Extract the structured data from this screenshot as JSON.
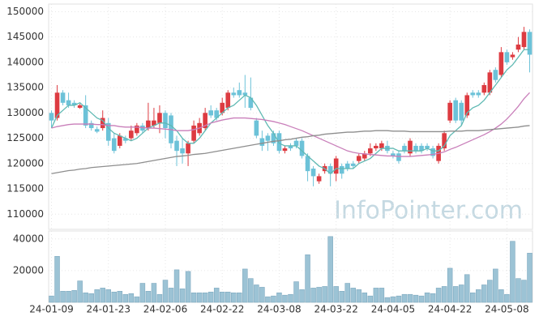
{
  "chart_data": [
    {
      "type": "candlestick",
      "categories": [
        "24-01-09",
        null,
        null,
        null,
        null,
        null,
        null,
        null,
        null,
        null,
        "24-01-23",
        null,
        null,
        null,
        null,
        null,
        null,
        null,
        null,
        null,
        "24-02-06",
        null,
        null,
        null,
        null,
        null,
        null,
        null,
        null,
        null,
        "24-02-22",
        null,
        null,
        null,
        null,
        null,
        null,
        null,
        null,
        null,
        "24-03-08",
        null,
        null,
        null,
        null,
        null,
        null,
        null,
        null,
        null,
        "24-03-22",
        null,
        null,
        null,
        null,
        null,
        null,
        null,
        null,
        null,
        "24-04-05",
        null,
        null,
        null,
        null,
        null,
        null,
        null,
        null,
        null,
        "24-04-22",
        null,
        null,
        null,
        null,
        null,
        null,
        null,
        null,
        null,
        "24-05-08",
        null,
        null,
        null,
        null
      ],
      "open": [
        130000,
        129000,
        134000,
        132500,
        132000,
        131000,
        131500,
        128000,
        126800,
        127000,
        128000,
        125000,
        123500,
        125000,
        125000,
        126000,
        127500,
        127000,
        127500,
        128000,
        130000,
        129500,
        124500,
        123000,
        122000,
        124500,
        126000,
        127000,
        130500,
        130500,
        130000,
        131000,
        134000,
        134500,
        134000,
        133000,
        128500,
        125000,
        125500,
        126000,
        126000,
        122500,
        123500,
        124500,
        124500,
        121500,
        119000,
        116500,
        118500,
        119500,
        118000,
        119500,
        120000,
        120000,
        120500,
        121000,
        122000,
        123000,
        123000,
        123500,
        122000,
        122000,
        123500,
        122000,
        123500,
        123500,
        123500,
        123000,
        120500,
        123000,
        128500,
        132500,
        132000,
        129500,
        134000,
        134000,
        134000,
        134000,
        138500,
        137500,
        142000,
        141000,
        142500,
        143000,
        146000
      ],
      "high": [
        130500,
        135500,
        134500,
        134000,
        132500,
        131800,
        133500,
        128500,
        127300,
        130500,
        129000,
        126000,
        126000,
        125500,
        127500,
        128000,
        128000,
        132000,
        131000,
        131500,
        130500,
        130000,
        125500,
        125000,
        124500,
        128500,
        129000,
        131000,
        131500,
        131000,
        133000,
        134500,
        135000,
        136000,
        137500,
        137000,
        129000,
        126500,
        126000,
        126500,
        126500,
        123500,
        124000,
        125000,
        125000,
        122000,
        119500,
        118000,
        120000,
        120000,
        121500,
        120000,
        120500,
        120500,
        122000,
        122500,
        124000,
        124000,
        124500,
        124500,
        122500,
        122500,
        124000,
        125000,
        124000,
        124000,
        124000,
        123500,
        124000,
        126500,
        132500,
        133000,
        132500,
        134000,
        134500,
        134500,
        136000,
        138500,
        139000,
        143000,
        142500,
        142000,
        145000,
        147000,
        146500
      ],
      "low": [
        127000,
        128500,
        131500,
        131000,
        131000,
        130800,
        127000,
        126500,
        126000,
        126500,
        123500,
        122000,
        123000,
        124000,
        124500,
        125500,
        126000,
        126500,
        127000,
        126000,
        125000,
        123000,
        119500,
        120000,
        119500,
        124000,
        125500,
        126500,
        129000,
        128500,
        129500,
        130500,
        133000,
        133000,
        131000,
        130500,
        125000,
        122500,
        122500,
        123500,
        122000,
        122000,
        122500,
        123000,
        121000,
        116500,
        115500,
        116000,
        118000,
        115500,
        116500,
        117000,
        118500,
        119000,
        120000,
        120500,
        121500,
        122500,
        122500,
        122000,
        121000,
        120000,
        122000,
        121500,
        122000,
        122000,
        122500,
        121000,
        120000,
        122500,
        128000,
        128000,
        127500,
        129000,
        133000,
        133000,
        133500,
        133500,
        136000,
        137000,
        139500,
        140500,
        142000,
        142500,
        138000
      ],
      "close": [
        128500,
        134000,
        132000,
        131500,
        131500,
        131500,
        127500,
        127000,
        126300,
        129000,
        124500,
        122500,
        125500,
        124500,
        126500,
        127500,
        126500,
        128500,
        128500,
        130000,
        127000,
        124000,
        122500,
        122000,
        124000,
        127500,
        128000,
        130000,
        129500,
        129000,
        132000,
        134000,
        133500,
        133500,
        133500,
        131000,
        125500,
        123500,
        124500,
        124000,
        122500,
        123000,
        123000,
        123500,
        121500,
        118500,
        117500,
        117500,
        119500,
        118000,
        121000,
        118000,
        119000,
        119500,
        121500,
        122000,
        123000,
        123500,
        124000,
        122500,
        121500,
        120500,
        122500,
        124500,
        122500,
        122500,
        123000,
        121500,
        123500,
        126000,
        132000,
        128500,
        128500,
        133500,
        133500,
        133500,
        135500,
        138000,
        136500,
        142000,
        140000,
        141500,
        143500,
        146000,
        141500
      ],
      "up_color": "#dd3b41",
      "down_color": "#6cc2d8",
      "series": [
        {
          "color": "#5fb9b3",
          "values": [
            127000,
            129500,
            130500,
            131500,
            131500,
            132000,
            131000,
            130000,
            129000,
            128500,
            127000,
            126000,
            125500,
            125000,
            124500,
            125000,
            126000,
            127000,
            127500,
            128000,
            128000,
            127500,
            126500,
            125000,
            124000,
            124000,
            125000,
            126500,
            128000,
            129000,
            130000,
            131000,
            131500,
            132500,
            133500,
            133000,
            131500,
            129500,
            127500,
            126000,
            124000,
            123500,
            123500,
            123500,
            122500,
            121500,
            120500,
            119500,
            119000,
            118000,
            119000,
            119000,
            119000,
            119000,
            120000,
            120500,
            121000,
            122000,
            123000,
            123000,
            123000,
            122500,
            122500,
            122500,
            122500,
            122500,
            123000,
            122500,
            122500,
            123500,
            125500,
            126500,
            127500,
            130000,
            131000,
            131500,
            132500,
            134000,
            135500,
            137000,
            138500,
            139500,
            141000,
            142500,
            142500
          ]
        },
        {
          "color": "#c97fba",
          "values": [
            127000,
            127300,
            127500,
            127700,
            127800,
            127800,
            127800,
            127800,
            127700,
            127700,
            127500,
            127500,
            127300,
            127200,
            127200,
            127200,
            127100,
            127000,
            127000,
            126900,
            126800,
            126700,
            126500,
            126500,
            126500,
            126700,
            127000,
            127500,
            128000,
            128300,
            128600,
            128800,
            129000,
            129000,
            129000,
            128900,
            128800,
            128700,
            128500,
            128300,
            128000,
            127700,
            127300,
            126900,
            126500,
            126000,
            125500,
            125000,
            124500,
            124000,
            123500,
            123000,
            122500,
            122200,
            122000,
            121900,
            121800,
            121700,
            121600,
            121500,
            121500,
            121400,
            121400,
            121400,
            121500,
            121600,
            121700,
            121800,
            122000,
            122300,
            122800,
            123200,
            123700,
            124200,
            124700,
            125200,
            125700,
            126300,
            127000,
            127800,
            128800,
            130000,
            131300,
            132800,
            134000
          ]
        },
        {
          "color": "#8e8e8e",
          "values": [
            118000,
            118200,
            118400,
            118600,
            118700,
            118900,
            119000,
            119200,
            119300,
            119400,
            119500,
            119600,
            119700,
            119800,
            119900,
            120000,
            120200,
            120400,
            120600,
            120800,
            121000,
            121200,
            121400,
            121500,
            121600,
            121800,
            121900,
            122000,
            122200,
            122400,
            122600,
            122800,
            123000,
            123200,
            123400,
            123600,
            123800,
            124000,
            124200,
            124400,
            124500,
            124700,
            124800,
            125000,
            125200,
            125300,
            125500,
            125600,
            125800,
            125900,
            126000,
            126100,
            126200,
            126200,
            126300,
            126400,
            126400,
            126500,
            126500,
            126500,
            126400,
            126400,
            126400,
            126300,
            126300,
            126300,
            126300,
            126300,
            126300,
            126300,
            126400,
            126400,
            126400,
            126500,
            126500,
            126500,
            126600,
            126700,
            126800,
            126900,
            127000,
            127100,
            127200,
            127400,
            127500
          ]
        }
      ],
      "ylim": [
        107000,
        151500
      ],
      "yticks": [
        110000,
        115000,
        120000,
        125000,
        130000,
        135000,
        140000,
        145000,
        150000
      ],
      "grid": true,
      "watermark": "InfoPointer.com"
    },
    {
      "type": "bar",
      "values": [
        4000,
        29000,
        7000,
        7000,
        7500,
        13500,
        6000,
        5500,
        8000,
        9000,
        8000,
        6500,
        7000,
        5000,
        5500,
        3500,
        12000,
        7000,
        12000,
        5000,
        14000,
        9000,
        20500,
        8500,
        19500,
        6000,
        6000,
        6000,
        6500,
        9000,
        6500,
        6500,
        6000,
        6000,
        21000,
        15000,
        11000,
        9500,
        3500,
        4000,
        6000,
        4500,
        5000,
        13000,
        8000,
        30000,
        9000,
        9500,
        10000,
        41500,
        10000,
        7000,
        12000,
        9000,
        8000,
        6000,
        4000,
        9000,
        9000,
        3000,
        3500,
        4000,
        5000,
        5000,
        4500,
        4000,
        6000,
        5500,
        9000,
        10000,
        21500,
        10000,
        11000,
        17500,
        6000,
        8000,
        11000,
        14000,
        21000,
        8000,
        5000,
        38500,
        15000,
        14000,
        31000
      ],
      "color": "#9cc3d5",
      "ylim": [
        0,
        45000
      ],
      "yticks": [
        20000,
        40000
      ],
      "grid": true
    }
  ]
}
